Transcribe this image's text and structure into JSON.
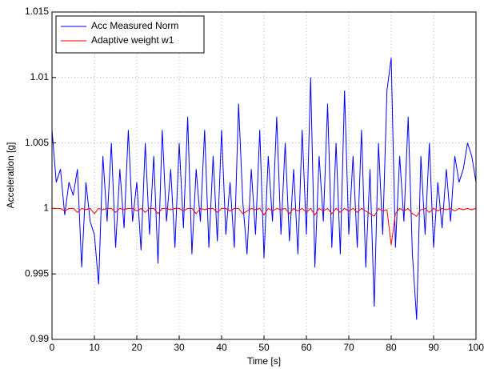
{
  "chart_data": {
    "type": "line",
    "xlabel": "Time [s]",
    "ylabel": "Acceleration [g]",
    "x": [
      0,
      1,
      2,
      3,
      4,
      5,
      6,
      7,
      8,
      9,
      10,
      11,
      12,
      13,
      14,
      15,
      16,
      17,
      18,
      19,
      20,
      21,
      22,
      23,
      24,
      25,
      26,
      27,
      28,
      29,
      30,
      31,
      32,
      33,
      34,
      35,
      36,
      37,
      38,
      39,
      40,
      41,
      42,
      43,
      44,
      45,
      46,
      47,
      48,
      49,
      50,
      51,
      52,
      53,
      54,
      55,
      56,
      57,
      58,
      59,
      60,
      61,
      62,
      63,
      64,
      65,
      66,
      67,
      68,
      69,
      70,
      71,
      72,
      73,
      74,
      75,
      76,
      77,
      78,
      79,
      80,
      81,
      82,
      83,
      84,
      85,
      86,
      87,
      88,
      89,
      90,
      91,
      92,
      93,
      94,
      95,
      96,
      97,
      98,
      99,
      100
    ],
    "series": [
      {
        "name": "Acc Measured Norm",
        "color": "#0000ff",
        "values": [
          1.006,
          1.002,
          1.003,
          0.9995,
          1.002,
          1.001,
          1.003,
          0.9955,
          1.002,
          0.999,
          0.998,
          0.9942,
          1.004,
          0.999,
          1.005,
          0.997,
          1.003,
          0.9985,
          1.006,
          0.999,
          1.002,
          0.9968,
          1.005,
          0.998,
          1.004,
          0.9958,
          1.006,
          0.999,
          1.003,
          0.997,
          1.005,
          0.9985,
          1.007,
          0.9965,
          1.003,
          0.999,
          1.006,
          0.997,
          1.004,
          0.9975,
          1.006,
          0.998,
          1.002,
          0.997,
          1.008,
          1.0005,
          0.9965,
          1.003,
          0.998,
          1.006,
          0.9962,
          1.004,
          0.999,
          1.007,
          0.998,
          1.005,
          0.9975,
          1.003,
          0.9965,
          1.006,
          0.998,
          1.01,
          0.9955,
          1.004,
          0.999,
          1.008,
          0.997,
          1.005,
          0.9965,
          1.009,
          0.998,
          1.004,
          0.997,
          1.006,
          0.9955,
          1.003,
          0.9925,
          1.005,
          0.998,
          1.009,
          1.0115,
          0.997,
          1.004,
          0.999,
          1.007,
          0.9965,
          0.9915,
          1.004,
          0.998,
          1.005,
          0.997,
          1.002,
          0.9985,
          1.003,
          0.999,
          1.004,
          1.002,
          1.003,
          1.005,
          1.004,
          1.002
        ]
      },
      {
        "name": "Adaptive weight w1",
        "color": "#ff0000",
        "values": [
          1.0,
          1.0,
          1.0,
          0.9998,
          1.0,
          1.0,
          0.9997,
          1.0,
          0.9999,
          1.0,
          0.9996,
          1.0,
          0.9999,
          1.0,
          1.0,
          0.9997,
          1.0,
          0.9999,
          1.0,
          1.0,
          0.9998,
          1.0,
          0.9997,
          1.0,
          1.0,
          0.9996,
          1.0,
          1.0,
          0.9999,
          1.0,
          1.0,
          0.9998,
          1.0,
          1.0,
          0.9996,
          1.0,
          0.9999,
          1.0,
          1.0,
          0.9997,
          1.0,
          1.0,
          0.9998,
          1.0,
          1.0,
          0.9996,
          0.9998,
          1.0,
          0.9999,
          1.0,
          0.9995,
          1.0,
          0.9998,
          1.0,
          0.9999,
          1.0,
          0.9996,
          1.0,
          0.9998,
          1.0,
          0.9997,
          1.0,
          0.9995,
          1.0,
          0.9998,
          1.0,
          0.9996,
          1.0,
          0.9997,
          1.0,
          0.9998,
          1.0,
          0.9997,
          1.0,
          0.9998,
          0.9996,
          0.9994,
          1.0,
          0.9998,
          0.9999,
          0.9972,
          0.9996,
          1.0,
          0.9998,
          1.0,
          0.9996,
          0.9994,
          0.9999,
          1.0,
          0.9997,
          1.0,
          0.9998,
          1.0,
          0.9999,
          1.0,
          0.9998,
          1.0,
          0.9999,
          1.0,
          0.9999,
          1.0
        ]
      }
    ],
    "xlim": [
      0,
      100
    ],
    "xticks": [
      0,
      10,
      20,
      30,
      40,
      50,
      60,
      70,
      80,
      90,
      100
    ],
    "ylim": [
      0.99,
      1.015
    ],
    "yticks": [
      0.99,
      0.995,
      1,
      1.005,
      1.01,
      1.015
    ],
    "grid": true,
    "legend": "upper left"
  }
}
